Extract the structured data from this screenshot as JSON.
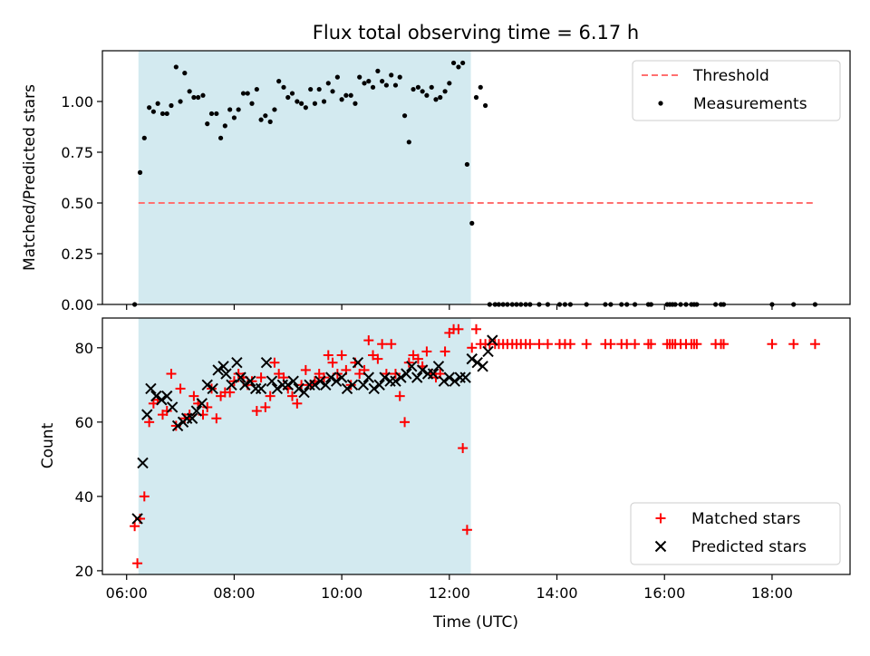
{
  "chart_data": {
    "title": "Flux total observing time = 6.17 h",
    "colors": {
      "measurement": "#000000",
      "threshold": "#ff7070",
      "observing_window": "#d3eaf0",
      "matched": "#ff0000",
      "predicted": "#000000"
    },
    "observing_window": {
      "start": 6.22,
      "end": 12.4
    },
    "x_axis": {
      "label": "Time (UTC)",
      "range": [
        5.55,
        19.45
      ],
      "ticks": [
        6,
        8,
        10,
        12,
        14,
        16,
        18
      ],
      "tick_labels": [
        "06:00",
        "08:00",
        "10:00",
        "12:00",
        "14:00",
        "16:00",
        "18:00"
      ]
    },
    "panels": [
      {
        "type": "scatter",
        "ylabel": "Matched/Predicted stars",
        "ylim": [
          0,
          1.25
        ],
        "yticks": [
          0.0,
          0.25,
          0.5,
          0.75,
          1.0
        ],
        "ytick_labels": [
          "0.00",
          "0.25",
          "0.50",
          "0.75",
          "1.00"
        ],
        "legend": {
          "position": "top-right",
          "entries": [
            {
              "label": "Threshold",
              "marker": "dashed-line"
            },
            {
              "label": "Measurements",
              "marker": "dot"
            }
          ]
        },
        "threshold": {
          "y": 0.5,
          "x_range": [
            6.22,
            18.8
          ]
        },
        "measurements": {
          "x": [
            6.15,
            6.25,
            6.33,
            6.42,
            6.5,
            6.58,
            6.67,
            6.75,
            6.83,
            6.92,
            7.0,
            7.08,
            7.17,
            7.25,
            7.33,
            7.42,
            7.5,
            7.58,
            7.67,
            7.75,
            7.83,
            7.92,
            8.0,
            8.08,
            8.17,
            8.25,
            8.33,
            8.42,
            8.5,
            8.58,
            8.67,
            8.75,
            8.83,
            8.92,
            9.0,
            9.08,
            9.17,
            9.25,
            9.33,
            9.42,
            9.5,
            9.58,
            9.67,
            9.75,
            9.83,
            9.92,
            10.0,
            10.08,
            10.17,
            10.25,
            10.33,
            10.42,
            10.5,
            10.58,
            10.67,
            10.75,
            10.83,
            10.92,
            11.0,
            11.08,
            11.17,
            11.25,
            11.33,
            11.42,
            11.5,
            11.58,
            11.67,
            11.75,
            11.83,
            11.92,
            12.0,
            12.08,
            12.17,
            12.25,
            12.33,
            12.42,
            12.5,
            12.58,
            12.67,
            12.75,
            12.85,
            12.92,
            13.0,
            13.08,
            13.17,
            13.25,
            13.33,
            13.42,
            13.5,
            13.67,
            13.83,
            14.05,
            14.15,
            14.25,
            14.55,
            14.9,
            15.0,
            15.2,
            15.3,
            15.45,
            15.7,
            15.75,
            16.05,
            16.1,
            16.15,
            16.2,
            16.3,
            16.4,
            16.5,
            16.55,
            16.6,
            16.95,
            17.05,
            17.1,
            18.0,
            18.4,
            18.8
          ],
          "y": [
            0.0,
            0.65,
            0.82,
            0.97,
            0.95,
            0.99,
            0.94,
            0.94,
            0.98,
            1.17,
            1.0,
            1.14,
            1.05,
            1.02,
            1.02,
            1.03,
            0.89,
            0.94,
            0.94,
            0.82,
            0.88,
            0.96,
            0.92,
            0.96,
            1.04,
            1.04,
            0.99,
            1.06,
            0.91,
            0.93,
            0.9,
            0.96,
            1.1,
            1.07,
            1.02,
            1.04,
            1.0,
            0.99,
            0.97,
            1.06,
            0.99,
            1.06,
            1.0,
            1.09,
            1.05,
            1.12,
            1.01,
            1.03,
            1.03,
            0.99,
            1.12,
            1.09,
            1.1,
            1.07,
            1.15,
            1.1,
            1.08,
            1.13,
            1.08,
            1.12,
            0.93,
            0.8,
            1.06,
            1.07,
            1.05,
            1.03,
            1.07,
            1.01,
            1.02,
            1.05,
            1.09,
            1.19,
            1.17,
            1.19,
            0.69,
            0.4,
            1.02,
            1.07,
            0.98,
            0.0,
            0.0,
            0.0,
            0.0,
            0.0,
            0.0,
            0.0,
            0.0,
            0.0,
            0.0,
            0.0,
            0.0,
            0.0,
            0.0,
            0.0,
            0.0,
            0.0,
            0.0,
            0.0,
            0.0,
            0.0,
            0.0,
            0.0,
            0.0,
            0.0,
            0.0,
            0.0,
            0.0,
            0.0,
            0.0,
            0.0,
            0.0,
            0.0,
            0.0,
            0.0,
            0.0,
            0.0,
            0.0
          ]
        }
      },
      {
        "type": "scatter",
        "ylabel": "Count",
        "ylim": [
          19,
          88
        ],
        "yticks": [
          20,
          40,
          60,
          80
        ],
        "ytick_labels": [
          "20",
          "40",
          "60",
          "80"
        ],
        "legend": {
          "position": "bottom-right",
          "entries": [
            {
              "label": "Matched stars",
              "marker": "plus"
            },
            {
              "label": "Predicted stars",
              "marker": "x"
            }
          ]
        },
        "matched_stars": {
          "x": [
            6.15,
            6.2,
            6.25,
            6.33,
            6.42,
            6.5,
            6.58,
            6.67,
            6.75,
            6.83,
            6.92,
            7.0,
            7.08,
            7.17,
            7.25,
            7.33,
            7.42,
            7.5,
            7.58,
            7.67,
            7.75,
            7.83,
            7.92,
            8.0,
            8.08,
            8.17,
            8.25,
            8.33,
            8.42,
            8.5,
            8.58,
            8.67,
            8.75,
            8.83,
            8.92,
            9.0,
            9.08,
            9.17,
            9.25,
            9.33,
            9.42,
            9.5,
            9.58,
            9.67,
            9.75,
            9.83,
            9.92,
            10.0,
            10.08,
            10.17,
            10.25,
            10.33,
            10.42,
            10.5,
            10.58,
            10.67,
            10.75,
            10.83,
            10.92,
            11.0,
            11.08,
            11.17,
            11.25,
            11.33,
            11.42,
            11.5,
            11.58,
            11.67,
            11.75,
            11.83,
            11.92,
            12.0,
            12.08,
            12.17,
            12.25,
            12.33,
            12.42,
            12.5,
            12.58,
            12.67,
            12.75,
            12.85,
            12.92,
            13.0,
            13.08,
            13.17,
            13.25,
            13.33,
            13.42,
            13.5,
            13.67,
            13.83,
            14.05,
            14.15,
            14.25,
            14.55,
            14.9,
            15.0,
            15.2,
            15.3,
            15.45,
            15.7,
            15.75,
            16.05,
            16.1,
            16.15,
            16.2,
            16.3,
            16.4,
            16.5,
            16.55,
            16.6,
            16.95,
            17.05,
            17.1,
            18.0,
            18.4,
            18.8
          ],
          "y": [
            32,
            22,
            34,
            40,
            60,
            65,
            66,
            62,
            63,
            73,
            59,
            69,
            61,
            62,
            67,
            65,
            62,
            64,
            69,
            61,
            67,
            68,
            68,
            71,
            73,
            72,
            70,
            71,
            63,
            72,
            64,
            67,
            76,
            73,
            72,
            69,
            67,
            65,
            70,
            74,
            70,
            71,
            73,
            72,
            78,
            76,
            73,
            78,
            74,
            70,
            76,
            73,
            74,
            82,
            78,
            77,
            81,
            73,
            81,
            73,
            67,
            60,
            76,
            78,
            77,
            75,
            79,
            73,
            72,
            73,
            79,
            84,
            85,
            85,
            53,
            31,
            80,
            85,
            81,
            81,
            81,
            81,
            81,
            81,
            81,
            81,
            81,
            81,
            81,
            81,
            81,
            81,
            81,
            81,
            81,
            81,
            81,
            81,
            81,
            81,
            81,
            81,
            81,
            81,
            81,
            81,
            81,
            81,
            81,
            81,
            81,
            81,
            81,
            81,
            81,
            81,
            81,
            81
          ]
        },
        "predicted_stars": {
          "x": [
            6.2,
            6.3,
            6.38,
            6.45,
            6.55,
            6.65,
            6.75,
            6.85,
            6.95,
            7.05,
            7.12,
            7.22,
            7.3,
            7.4,
            7.5,
            7.6,
            7.7,
            7.8,
            7.85,
            7.95,
            8.05,
            8.12,
            8.2,
            8.3,
            8.4,
            8.5,
            8.6,
            8.7,
            8.8,
            8.9,
            9.0,
            9.1,
            9.2,
            9.3,
            9.4,
            9.5,
            9.6,
            9.7,
            9.8,
            9.9,
            10.0,
            10.1,
            10.2,
            10.3,
            10.4,
            10.5,
            10.6,
            10.7,
            10.8,
            10.9,
            11.0,
            11.1,
            11.2,
            11.3,
            11.4,
            11.5,
            11.6,
            11.7,
            11.8,
            11.9,
            12.0,
            12.1,
            12.2,
            12.3,
            12.42,
            12.52,
            12.62,
            12.72,
            12.8
          ],
          "y": [
            34,
            49,
            62,
            69,
            67,
            66,
            67,
            64,
            59,
            60,
            61,
            61,
            63,
            65,
            70,
            69,
            74,
            75,
            73,
            70,
            76,
            72,
            70,
            71,
            69,
            69,
            76,
            71,
            69,
            70,
            70,
            71,
            69,
            68,
            70,
            70,
            71,
            70,
            72,
            71,
            72,
            69,
            70,
            76,
            70,
            72,
            69,
            70,
            72,
            71,
            71,
            72,
            73,
            75,
            72,
            74,
            73,
            73,
            75,
            71,
            72,
            71,
            72,
            72,
            77,
            76,
            75,
            79,
            82
          ]
        }
      }
    ]
  }
}
